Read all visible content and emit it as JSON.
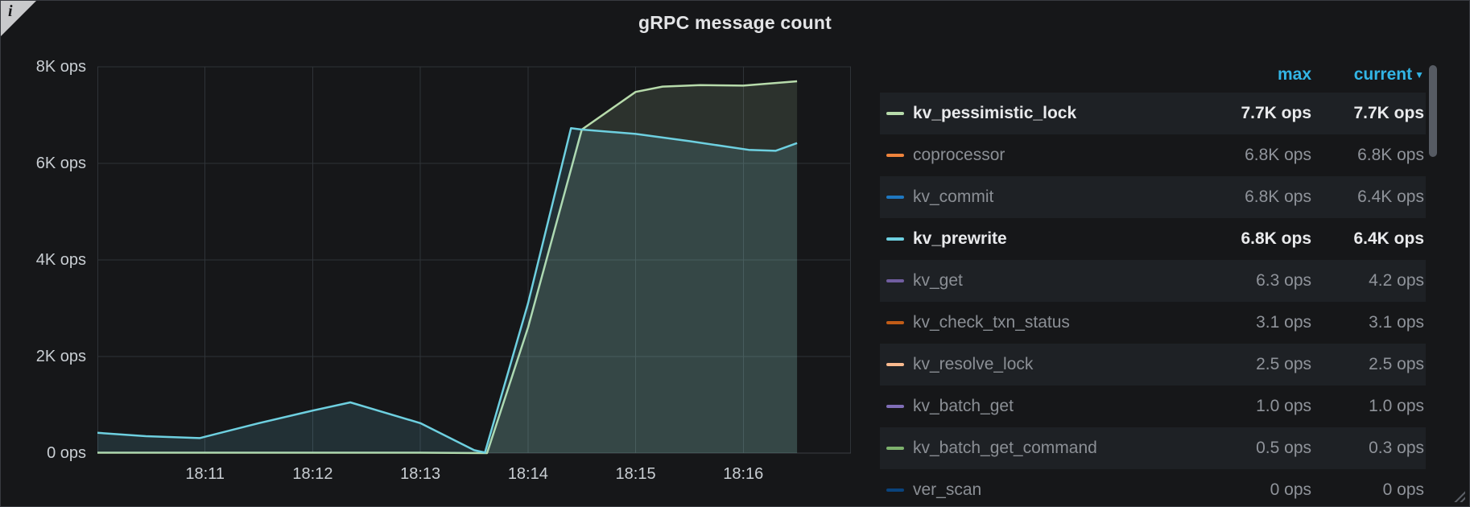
{
  "panel": {
    "info_icon": "i"
  },
  "colors": {
    "background": "#161719",
    "grid": "#2f3338",
    "axis_zero_line": "#3a3e44",
    "accent_blue": "#33b5e5",
    "axis_text": "#c9ced3"
  },
  "chart_data": {
    "type": "line",
    "title": "gRPC message count",
    "unit": "ops",
    "xlabel": "",
    "ylabel": "",
    "ylim": [
      0,
      8000
    ],
    "x_domain": [
      0,
      7
    ],
    "grid": true,
    "legend_position": "right-table",
    "y_ticks": [
      {
        "label": "8K ops",
        "value": 8000
      },
      {
        "label": "6K ops",
        "value": 6000
      },
      {
        "label": "4K ops",
        "value": 4000
      },
      {
        "label": "2K ops",
        "value": 2000
      },
      {
        "label": "0 ops",
        "value": 0
      }
    ],
    "x_ticks": [
      {
        "label": "18:11",
        "t": 1
      },
      {
        "label": "18:12",
        "t": 2
      },
      {
        "label": "18:13",
        "t": 3
      },
      {
        "label": "18:14",
        "t": 4
      },
      {
        "label": "18:15",
        "t": 5
      },
      {
        "label": "18:16",
        "t": 6
      }
    ],
    "series": [
      {
        "name": "kv_pessimistic_lock",
        "color": "#b7dbab",
        "fill_opacity": 0.14,
        "points": [
          [
            0,
            8
          ],
          [
            1,
            8
          ],
          [
            2,
            8
          ],
          [
            3,
            8
          ],
          [
            3.3,
            5
          ],
          [
            3.62,
            0
          ],
          [
            4,
            2600
          ],
          [
            4.5,
            6700
          ],
          [
            5,
            7480
          ],
          [
            5.25,
            7590
          ],
          [
            5.6,
            7620
          ],
          [
            6,
            7610
          ],
          [
            6.5,
            7700
          ]
        ]
      },
      {
        "name": "kv_prewrite",
        "color": "#6ed0e0",
        "fill_opacity": 0.14,
        "points": [
          [
            0,
            420
          ],
          [
            0.45,
            350
          ],
          [
            0.95,
            310
          ],
          [
            1.5,
            620
          ],
          [
            2,
            880
          ],
          [
            2.35,
            1050
          ],
          [
            3,
            620
          ],
          [
            3.5,
            60
          ],
          [
            3.6,
            10
          ],
          [
            4,
            3100
          ],
          [
            4.4,
            6730
          ],
          [
            4.5,
            6700
          ],
          [
            5,
            6610
          ],
          [
            5.5,
            6460
          ],
          [
            6.05,
            6280
          ],
          [
            6.3,
            6260
          ],
          [
            6.5,
            6420
          ]
        ]
      }
    ]
  },
  "legend": {
    "columns": [
      "max",
      "current"
    ],
    "sort": {
      "column": "current",
      "direction": "desc",
      "icon": "▼"
    },
    "rows": [
      {
        "name": "kv_pessimistic_lock",
        "color": "#b7dbab",
        "max": "7.7K ops",
        "current": "7.7K ops",
        "highlighted": true
      },
      {
        "name": "coprocessor",
        "color": "#ef843c",
        "max": "6.8K ops",
        "current": "6.8K ops",
        "highlighted": false
      },
      {
        "name": "kv_commit",
        "color": "#1f78c1",
        "max": "6.8K ops",
        "current": "6.4K ops",
        "highlighted": false
      },
      {
        "name": "kv_prewrite",
        "color": "#6ed0e0",
        "max": "6.8K ops",
        "current": "6.4K ops",
        "highlighted": true
      },
      {
        "name": "kv_get",
        "color": "#705da0",
        "max": "6.3 ops",
        "current": "4.2 ops",
        "highlighted": false
      },
      {
        "name": "kv_check_txn_status",
        "color": "#c15c17",
        "max": "3.1 ops",
        "current": "3.1 ops",
        "highlighted": false
      },
      {
        "name": "kv_resolve_lock",
        "color": "#f9ba8f",
        "max": "2.5 ops",
        "current": "2.5 ops",
        "highlighted": false
      },
      {
        "name": "kv_batch_get",
        "color": "#806eb7",
        "max": "1.0 ops",
        "current": "1.0 ops",
        "highlighted": false
      },
      {
        "name": "kv_batch_get_command",
        "color": "#7eb26d",
        "max": "0.5 ops",
        "current": "0.3 ops",
        "highlighted": false
      },
      {
        "name": "ver_scan",
        "color": "#0a437c",
        "max": "0 ops",
        "current": "0 ops",
        "highlighted": false
      }
    ]
  }
}
